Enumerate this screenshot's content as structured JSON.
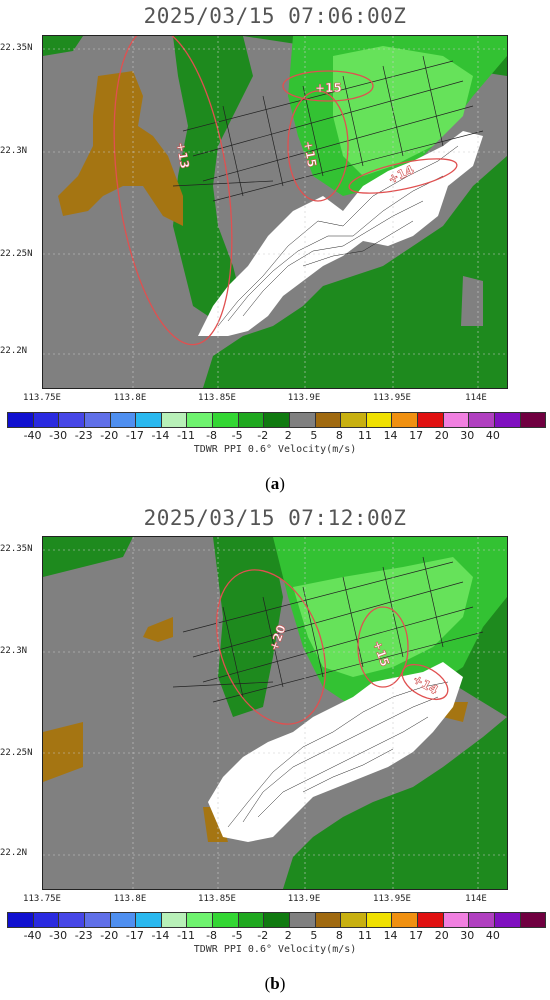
{
  "panels": [
    {
      "title": "2025/03/15 07:06:00Z",
      "caption_letter": "a",
      "annotations": [
        "+13",
        "+15",
        "+15",
        "+14"
      ]
    },
    {
      "title": "2025/03/15 07:12:00Z",
      "caption_letter": "b",
      "annotations": [
        "+20",
        "+15",
        "+14"
      ]
    }
  ],
  "axes": {
    "y_labels": [
      "22.35N",
      "22.3N",
      "22.25N",
      "22.2N"
    ],
    "x_labels": [
      "113.75E",
      "113.8E",
      "113.85E",
      "113.9E",
      "113.95E",
      "114E"
    ]
  },
  "colorbar": {
    "title": "TDWR PPI 0.6° Velocity(m/s)",
    "ticks": [
      "-40",
      "-30",
      "-23",
      "-20",
      "-17",
      "-14",
      "-11",
      "-8",
      "-5",
      "-2",
      "2",
      "5",
      "8",
      "11",
      "14",
      "17",
      "20",
      "30",
      "40"
    ],
    "colors": [
      "#1010d0",
      "#2a2ae0",
      "#4646e6",
      "#5f6fe8",
      "#4f8ff0",
      "#29b8ef",
      "#b8f0b8",
      "#6ef26e",
      "#33d633",
      "#1fa81f",
      "#107a10",
      "#808080",
      "#a06a10",
      "#c8b010",
      "#f0e000",
      "#f09010",
      "#e01010",
      "#f080e0",
      "#b040c0",
      "#8010c0",
      "#700040"
    ]
  },
  "map_colors": {
    "gray": "#808080",
    "dark_green": "#1e8a1e",
    "mid_green": "#33c233",
    "light_green": "#66e25a",
    "brown": "#a57512",
    "white": "#ffffff",
    "annotation": "#e05050"
  }
}
